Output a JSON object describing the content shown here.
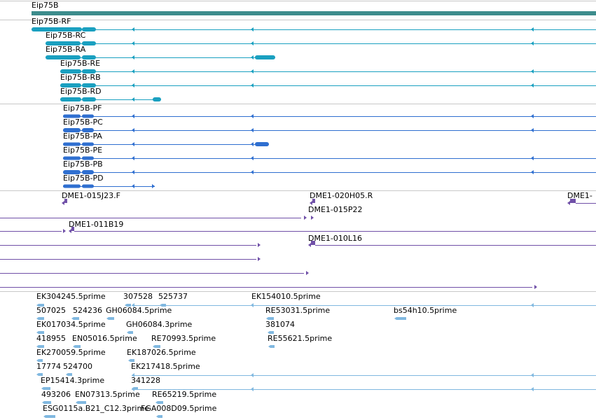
{
  "colors": {
    "gene": "#3d8c8c",
    "transcript_r": "#1aa0c0",
    "transcript_p": "#2f6fd0",
    "clone": "#7050a8",
    "est": "#80b8e0",
    "divider": "#c8c8c8"
  },
  "gene_track": {
    "label": "Eip75B"
  },
  "transcripts": [
    {
      "label": "Eip75B-RF"
    },
    {
      "label": "Eip75B-RC"
    },
    {
      "label": "Eip75B-RA"
    },
    {
      "label": "Eip75B-RE"
    },
    {
      "label": "Eip75B-RB"
    },
    {
      "label": "Eip75B-RD"
    }
  ],
  "proteins": [
    {
      "label": "Eip75B-PF"
    },
    {
      "label": "Eip75B-PC"
    },
    {
      "label": "Eip75B-PA"
    },
    {
      "label": "Eip75B-PE"
    },
    {
      "label": "Eip75B-PB"
    },
    {
      "label": "Eip75B-PD"
    }
  ],
  "clones": [
    {
      "label": "DME1-015J23.F"
    },
    {
      "label": "DME1-020H05.R"
    },
    {
      "label": "DME1-"
    },
    {
      "label": "DME1-015P22"
    },
    {
      "label": "DME1-011B19"
    },
    {
      "label": "DME1-010L16"
    }
  ],
  "ests": [
    {
      "label": "EK304245.5prime"
    },
    {
      "label": "307528"
    },
    {
      "label": "525737"
    },
    {
      "label": "EK154010.5prime"
    },
    {
      "label": "507025"
    },
    {
      "label": "524236"
    },
    {
      "label": "GH06084.5prime"
    },
    {
      "label": "RE53031.5prime"
    },
    {
      "label": "bs54h10.5prime"
    },
    {
      "label": "EK017034.5prime"
    },
    {
      "label": "GH06084.3prime"
    },
    {
      "label": "381074"
    },
    {
      "label": "418955"
    },
    {
      "label": "EN05016.5prime"
    },
    {
      "label": "RE70993.5prime"
    },
    {
      "label": "RE55621.5prime"
    },
    {
      "label": "EK270059.5prime"
    },
    {
      "label": "EK187026.5prime"
    },
    {
      "label": "17774"
    },
    {
      "label": "524700"
    },
    {
      "label": "EK217418.5prime"
    },
    {
      "label": "EP15414.3prime"
    },
    {
      "label": "341228"
    },
    {
      "label": "493206"
    },
    {
      "label": "EN07313.5prime"
    },
    {
      "label": "RE65219.5prime"
    },
    {
      "label": "ESG0115a.B21_C12.3prime"
    },
    {
      "label": "FGA008D09.5prime"
    }
  ]
}
